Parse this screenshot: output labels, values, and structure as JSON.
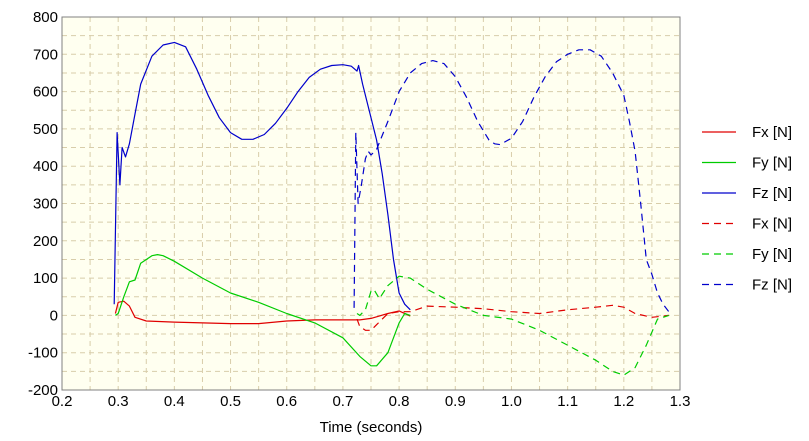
{
  "chart_data": {
    "type": "line",
    "title": "",
    "xlabel": "Time (seconds)",
    "ylabel": "",
    "xlim": [
      0.2,
      1.3
    ],
    "ylim": [
      -200,
      800
    ],
    "x_ticks": [
      "0.2",
      "0.3",
      "0.4",
      "0.5",
      "0.6",
      "0.7",
      "0.8",
      "0.9",
      "1.0",
      "1.1",
      "1.2",
      "1.3"
    ],
    "y_ticks": [
      "800",
      "700",
      "600",
      "500",
      "400",
      "300",
      "200",
      "100",
      "0",
      "-100",
      "-200"
    ],
    "grid": true,
    "plot_background": "#FFFFF0",
    "grid_color": "#D8CDAA",
    "legend_position": "right",
    "series": [
      {
        "name": "Fx [N]",
        "color": "#E00000",
        "dash": "solid",
        "points": [
          [
            0.295,
            5
          ],
          [
            0.3,
            35
          ],
          [
            0.31,
            38
          ],
          [
            0.32,
            25
          ],
          [
            0.33,
            -5
          ],
          [
            0.35,
            -15
          ],
          [
            0.4,
            -18
          ],
          [
            0.45,
            -20
          ],
          [
            0.5,
            -22
          ],
          [
            0.55,
            -22
          ],
          [
            0.6,
            -15
          ],
          [
            0.65,
            -12
          ],
          [
            0.7,
            -12
          ],
          [
            0.73,
            -12
          ],
          [
            0.75,
            -8
          ],
          [
            0.78,
            5
          ],
          [
            0.8,
            12
          ],
          [
            0.82,
            -2
          ]
        ]
      },
      {
        "name": "Fy [N]",
        "color": "#00CC00",
        "dash": "solid",
        "points": [
          [
            0.295,
            0
          ],
          [
            0.3,
            5
          ],
          [
            0.31,
            50
          ],
          [
            0.32,
            90
          ],
          [
            0.33,
            95
          ],
          [
            0.34,
            140
          ],
          [
            0.36,
            160
          ],
          [
            0.37,
            163
          ],
          [
            0.38,
            160
          ],
          [
            0.4,
            145
          ],
          [
            0.45,
            100
          ],
          [
            0.5,
            60
          ],
          [
            0.55,
            35
          ],
          [
            0.6,
            5
          ],
          [
            0.65,
            -20
          ],
          [
            0.7,
            -60
          ],
          [
            0.73,
            -110
          ],
          [
            0.75,
            -135
          ],
          [
            0.76,
            -135
          ],
          [
            0.78,
            -100
          ],
          [
            0.8,
            -20
          ],
          [
            0.81,
            5
          ],
          [
            0.82,
            0
          ]
        ]
      },
      {
        "name": "Fz [N]",
        "color": "#0000CC",
        "dash": "solid",
        "points": [
          [
            0.293,
            30
          ],
          [
            0.298,
            490
          ],
          [
            0.303,
            350
          ],
          [
            0.307,
            450
          ],
          [
            0.313,
            425
          ],
          [
            0.32,
            460
          ],
          [
            0.33,
            540
          ],
          [
            0.34,
            620
          ],
          [
            0.36,
            695
          ],
          [
            0.38,
            725
          ],
          [
            0.4,
            732
          ],
          [
            0.42,
            720
          ],
          [
            0.44,
            660
          ],
          [
            0.46,
            590
          ],
          [
            0.48,
            530
          ],
          [
            0.5,
            490
          ],
          [
            0.52,
            472
          ],
          [
            0.54,
            472
          ],
          [
            0.56,
            485
          ],
          [
            0.58,
            515
          ],
          [
            0.6,
            555
          ],
          [
            0.62,
            600
          ],
          [
            0.64,
            638
          ],
          [
            0.66,
            660
          ],
          [
            0.68,
            670
          ],
          [
            0.7,
            672
          ],
          [
            0.715,
            668
          ],
          [
            0.725,
            655
          ],
          [
            0.728,
            670
          ],
          [
            0.735,
            620
          ],
          [
            0.745,
            560
          ],
          [
            0.76,
            470
          ],
          [
            0.77,
            380
          ],
          [
            0.78,
            270
          ],
          [
            0.79,
            150
          ],
          [
            0.8,
            60
          ],
          [
            0.81,
            30
          ],
          [
            0.82,
            15
          ]
        ]
      },
      {
        "name": "Fx [N]",
        "color": "#E00000",
        "dash": "dashed",
        "points": [
          [
            0.725,
            -10
          ],
          [
            0.73,
            -30
          ],
          [
            0.74,
            -40
          ],
          [
            0.75,
            -40
          ],
          [
            0.76,
            -25
          ],
          [
            0.78,
            5
          ],
          [
            0.8,
            10
          ],
          [
            0.82,
            10
          ],
          [
            0.85,
            25
          ],
          [
            0.9,
            22
          ],
          [
            0.95,
            18
          ],
          [
            1.0,
            10
          ],
          [
            1.05,
            5
          ],
          [
            1.1,
            15
          ],
          [
            1.15,
            22
          ],
          [
            1.18,
            27
          ],
          [
            1.2,
            22
          ],
          [
            1.22,
            5
          ],
          [
            1.25,
            -5
          ],
          [
            1.28,
            0
          ]
        ]
      },
      {
        "name": "Fy [N]",
        "color": "#00CC00",
        "dash": "dashed",
        "points": [
          [
            0.725,
            5
          ],
          [
            0.73,
            0
          ],
          [
            0.74,
            15
          ],
          [
            0.75,
            65
          ],
          [
            0.755,
            70
          ],
          [
            0.765,
            45
          ],
          [
            0.78,
            80
          ],
          [
            0.8,
            105
          ],
          [
            0.82,
            100
          ],
          [
            0.85,
            70
          ],
          [
            0.9,
            30
          ],
          [
            0.95,
            0
          ],
          [
            1.0,
            -10
          ],
          [
            1.05,
            -40
          ],
          [
            1.1,
            -80
          ],
          [
            1.15,
            -120
          ],
          [
            1.18,
            -150
          ],
          [
            1.2,
            -160
          ],
          [
            1.22,
            -140
          ],
          [
            1.24,
            -80
          ],
          [
            1.26,
            -10
          ],
          [
            1.28,
            0
          ]
        ]
      },
      {
        "name": "Fz [N]",
        "color": "#0000CC",
        "dash": "dashed",
        "points": [
          [
            0.72,
            20
          ],
          [
            0.723,
            490
          ],
          [
            0.727,
            300
          ],
          [
            0.733,
            350
          ],
          [
            0.74,
            420
          ],
          [
            0.745,
            440
          ],
          [
            0.75,
            430
          ],
          [
            0.76,
            445
          ],
          [
            0.78,
            520
          ],
          [
            0.8,
            600
          ],
          [
            0.82,
            650
          ],
          [
            0.84,
            675
          ],
          [
            0.86,
            683
          ],
          [
            0.88,
            675
          ],
          [
            0.9,
            640
          ],
          [
            0.92,
            585
          ],
          [
            0.94,
            520
          ],
          [
            0.96,
            470
          ],
          [
            0.97,
            460
          ],
          [
            0.98,
            458
          ],
          [
            1.0,
            475
          ],
          [
            1.02,
            520
          ],
          [
            1.04,
            585
          ],
          [
            1.06,
            640
          ],
          [
            1.08,
            680
          ],
          [
            1.1,
            700
          ],
          [
            1.12,
            712
          ],
          [
            1.14,
            712
          ],
          [
            1.16,
            695
          ],
          [
            1.18,
            650
          ],
          [
            1.2,
            590
          ],
          [
            1.21,
            520
          ],
          [
            1.22,
            440
          ],
          [
            1.23,
            300
          ],
          [
            1.24,
            150
          ],
          [
            1.25,
            110
          ],
          [
            1.26,
            60
          ],
          [
            1.27,
            30
          ],
          [
            1.28,
            10
          ]
        ]
      }
    ]
  }
}
